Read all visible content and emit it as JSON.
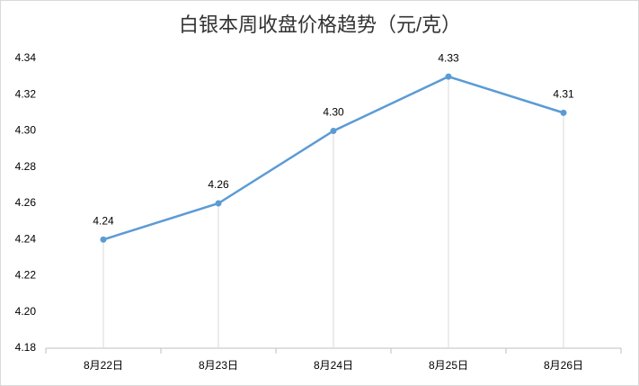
{
  "chart_data": {
    "type": "line",
    "title": "白银本周收盘价格趋势（元/克）",
    "categories": [
      "8月22日",
      "8月23日",
      "8月24日",
      "8月25日",
      "8月26日"
    ],
    "values": [
      4.24,
      4.26,
      4.3,
      4.33,
      4.31
    ],
    "value_labels": [
      "4.24",
      "4.26",
      "4.30",
      "4.33",
      "4.31"
    ],
    "color": "#5b9bd5",
    "ylim": [
      4.18,
      4.34
    ],
    "yticks": [
      4.18,
      {
        "value": 4.2,
        "label": "4.20"
      },
      4.22,
      4.24,
      4.26,
      4.28,
      {
        "value": 4.3,
        "label": "4.30"
      },
      4.32,
      4.34
    ],
    "grid": false
  }
}
